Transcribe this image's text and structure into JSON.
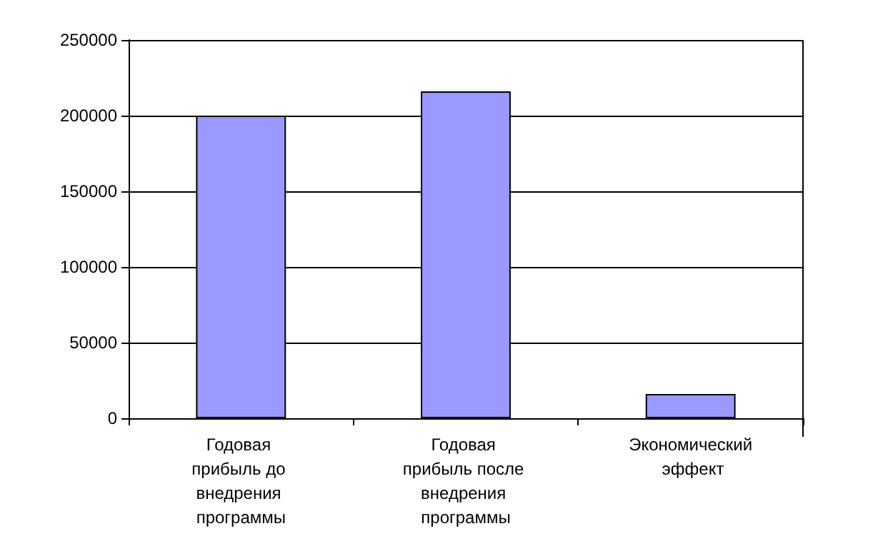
{
  "chart_data": {
    "type": "bar",
    "categories": [
      "Годовая прибыль до внедрения программы",
      "Годовая прибыль после внедрения программы",
      "Экономический эффект"
    ],
    "values": [
      200000,
      216000,
      16000
    ],
    "color": "#9999ff",
    "ylim": [
      0,
      250000
    ],
    "yticks": [
      0,
      50000,
      100000,
      150000,
      200000,
      250000
    ],
    "grid": "y"
  }
}
